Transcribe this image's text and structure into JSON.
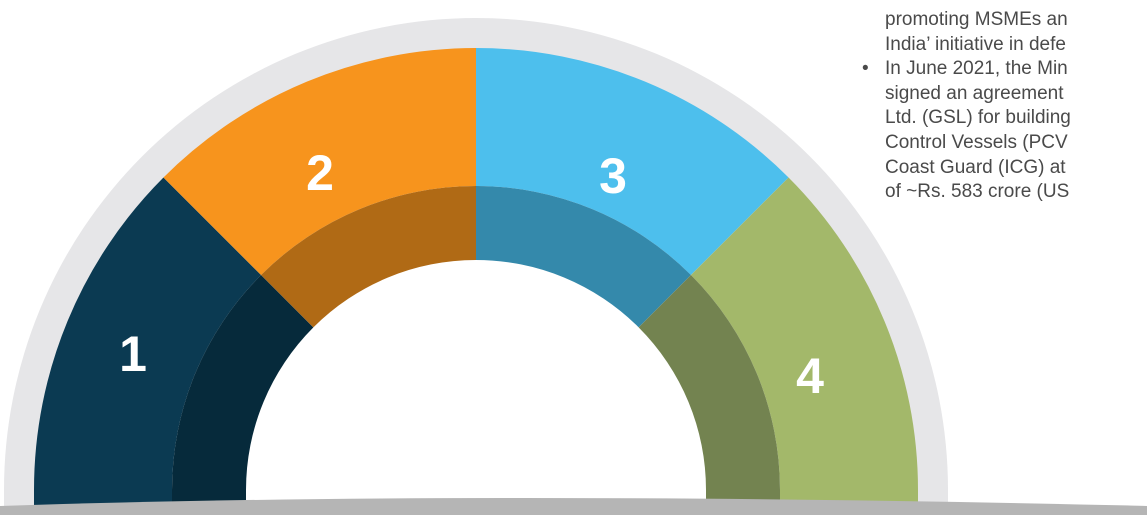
{
  "segments": [
    {
      "label": "1"
    },
    {
      "label": "2"
    },
    {
      "label": "3"
    },
    {
      "label": "4"
    }
  ],
  "bullets": [
    {
      "lines": [
        "promoting MSMEs an",
        "India’ initiative in defe"
      ],
      "marker": false
    },
    {
      "lines": [
        "In June 2021, the Min",
        "signed an agreement",
        "Ltd. (GSL) for building",
        "Control Vessels (PCV",
        "Coast Guard (ICG) at",
        "of ~Rs. 583 crore (US"
      ],
      "marker": true
    }
  ]
}
